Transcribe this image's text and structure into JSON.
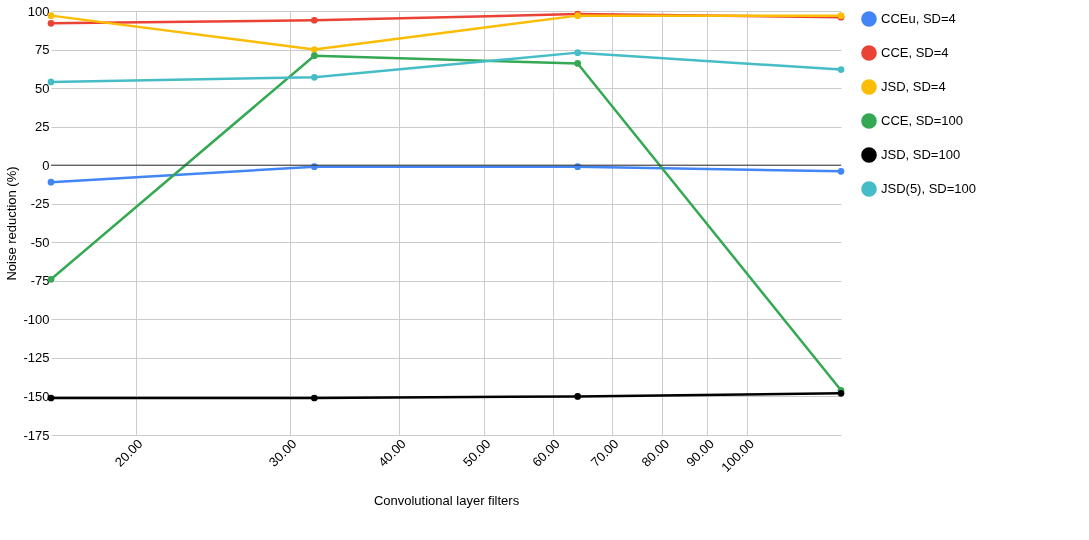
{
  "chart_data": {
    "type": "line",
    "xlabel": "Convolutional layer filters",
    "ylabel": "Noise reduction (%)",
    "x": [
      16,
      32,
      64,
      128
    ],
    "series": [
      {
        "name": "CCEu, SD=4",
        "color": "#4285f4",
        "values": [
          -11,
          -1,
          -1,
          -4
        ]
      },
      {
        "name": "CCE, SD=4",
        "color": "#ea4335",
        "values": [
          92,
          94,
          98,
          96
        ]
      },
      {
        "name": "JSD, SD=4",
        "color": "#fbbc04",
        "values": [
          97,
          75,
          97,
          97
        ]
      },
      {
        "name": "CCE, SD=100",
        "color": "#34a853",
        "values": [
          -74,
          71,
          66,
          -146
        ]
      },
      {
        "name": "JSD, SD=100",
        "color": "#000000",
        "values": [
          -151,
          -151,
          -150,
          -148
        ]
      },
      {
        "name": "JSD(5), SD=100",
        "color": "#46bdc6",
        "values": [
          54,
          57,
          73,
          62
        ]
      }
    ],
    "log": "x",
    "xlim": [
      16,
      128
    ],
    "xticks": [
      {
        "value": 20,
        "label": "20.00"
      },
      {
        "value": 30,
        "label": "30.00"
      },
      {
        "value": 40,
        "label": "40.00"
      },
      {
        "value": 50,
        "label": "50.00"
      },
      {
        "value": 60,
        "label": "60.00"
      },
      {
        "value": 70,
        "label": "70.00"
      },
      {
        "value": 80,
        "label": "80.00"
      },
      {
        "value": 90,
        "label": "90.00"
      },
      {
        "value": 100,
        "label": "100.00"
      }
    ],
    "ylim": [
      -175,
      100
    ],
    "yticks": [
      100,
      75,
      50,
      25,
      0,
      -25,
      -50,
      -75,
      -100,
      -125,
      -150,
      -175
    ],
    "ref_lines": [
      {
        "axis": "y",
        "value": 0,
        "color": "#333333"
      }
    ],
    "grid": true,
    "legend": "right",
    "marker": "circle",
    "line_style": "solid"
  }
}
